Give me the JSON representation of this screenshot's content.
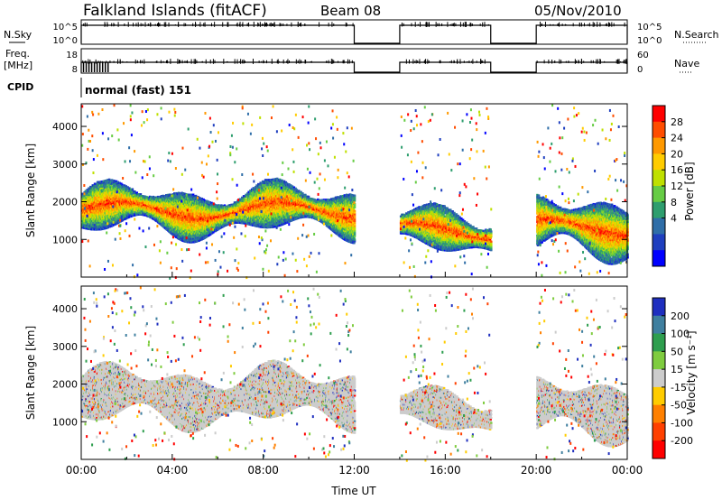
{
  "header": {
    "title": "Falkland Islands (fitACF)",
    "beam": "Beam 08",
    "date": "05/Nov/2010"
  },
  "chart_data": [
    {
      "type": "line",
      "name": "nsky-nsearch-panel",
      "left_label": "N.Sky",
      "right_label": "N.Search",
      "left_ticks": [
        "10^5",
        "10^0"
      ],
      "right_ticks": [
        "10^5",
        "10^0"
      ],
      "data_segments": [
        [
          0,
          12
        ],
        [
          14,
          18
        ],
        [
          20,
          24
        ]
      ]
    },
    {
      "type": "line",
      "name": "freq-nave-panel",
      "left_label_1": "Freq.",
      "left_label_2": "[MHz]",
      "right_label": "Nave",
      "left_ticks": [
        "18",
        "8"
      ],
      "right_ticks": [
        "60",
        "0"
      ],
      "data_segments": [
        [
          0,
          12
        ],
        [
          14,
          18
        ],
        [
          20,
          24
        ]
      ]
    },
    {
      "type": "table",
      "name": "cpid-panel",
      "label": "CPID",
      "value": "normal (fast) 151"
    },
    {
      "type": "heatmap",
      "name": "power-panel",
      "ylabel": "Slant Range [km]",
      "ylim": [
        0,
        4600
      ],
      "yticks": [
        1000,
        2000,
        3000,
        4000
      ],
      "xlim": [
        0,
        24
      ],
      "colorbar_label": "Power [dB]",
      "colorbar_ticks": [
        "28",
        "24",
        "20",
        "16",
        "12",
        "8",
        "4"
      ],
      "colorbar_colors": [
        "#ff0000",
        "#ff4d00",
        "#ff9900",
        "#ffcc00",
        "#bfe000",
        "#66cc44",
        "#2e9e6e",
        "#2f6ea8",
        "#1f3fbf",
        "#0000ff"
      ],
      "data_segments": [
        [
          0,
          12
        ],
        [
          14,
          18
        ],
        [
          20,
          24
        ]
      ],
      "bands": [
        {
          "x0": 0,
          "x1": 12,
          "low": 1100,
          "high": 2400
        },
        {
          "x0": 14,
          "x1": 18,
          "low": 600,
          "high": 1800
        },
        {
          "x0": 20,
          "x1": 24,
          "low": 500,
          "high": 2100
        }
      ]
    },
    {
      "type": "heatmap",
      "name": "velocity-panel",
      "ylabel": "Slant Range [km]",
      "ylim": [
        0,
        4600
      ],
      "yticks": [
        1000,
        2000,
        3000,
        4000
      ],
      "xlim": [
        0,
        24
      ],
      "xticks": [
        "00:00",
        "04:00",
        "08:00",
        "12:00",
        "16:00",
        "20:00",
        "00:00"
      ],
      "xlabel": "Time UT",
      "colorbar_label": "Velocity [m s⁻¹]",
      "colorbar_ticks": [
        "200",
        "100",
        "50",
        "15",
        "-15",
        "-50",
        "-100",
        "-200"
      ],
      "colorbar_colors": [
        "#1f2fbf",
        "#3f7f9f",
        "#2e9e4e",
        "#7fcc3f",
        "#cccccc",
        "#ffcc00",
        "#ff8000",
        "#ff4000",
        "#ff0000"
      ],
      "data_segments": [
        [
          0,
          12
        ],
        [
          14,
          18
        ],
        [
          20,
          24
        ]
      ],
      "bands": [
        {
          "x0": 0,
          "x1": 12,
          "low": 900,
          "high": 2400
        },
        {
          "x0": 14,
          "x1": 18,
          "low": 700,
          "high": 1800
        },
        {
          "x0": 20,
          "x1": 24,
          "low": 500,
          "high": 2100
        }
      ]
    }
  ]
}
